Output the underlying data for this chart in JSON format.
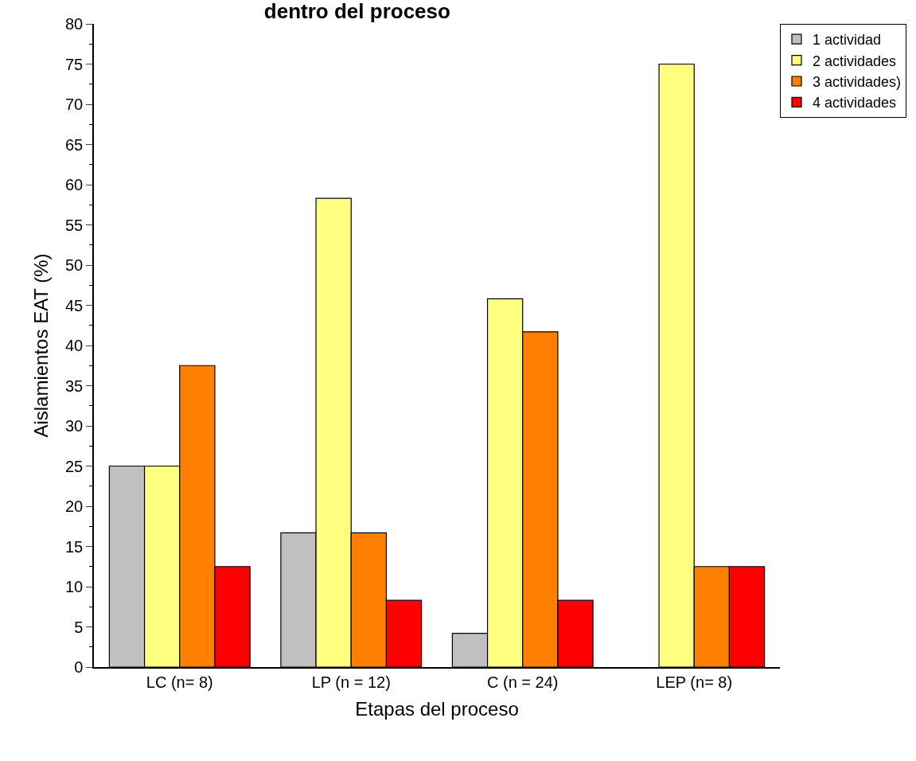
{
  "chart_data": {
    "type": "bar",
    "title": "dentro del proceso",
    "xlabel": "Etapas del proceso",
    "ylabel": "Aislamientos EAT (%)",
    "categories": [
      "LC (n= 8)",
      "LP (n = 12)",
      "C (n = 24)",
      "LEP (n= 8)"
    ],
    "series": [
      {
        "name": "1 actividad",
        "color": "#c0c0c0",
        "values": [
          25,
          16.7,
          4.2,
          0
        ]
      },
      {
        "name": "2 actividades",
        "color": "#ffff80",
        "values": [
          25,
          58.3,
          45.8,
          75
        ]
      },
      {
        "name": "3 actividades)",
        "color": "#ff8000",
        "values": [
          37.5,
          16.7,
          41.7,
          12.5
        ]
      },
      {
        "name": "4 actividades",
        "color": "#ff0000",
        "values": [
          12.5,
          8.3,
          8.3,
          12.5
        ]
      }
    ],
    "ylim": [
      0,
      80
    ],
    "yticks": [
      0,
      5,
      10,
      15,
      20,
      25,
      30,
      35,
      40,
      45,
      50,
      55,
      60,
      65,
      70,
      75,
      80
    ],
    "legend": "top right"
  }
}
